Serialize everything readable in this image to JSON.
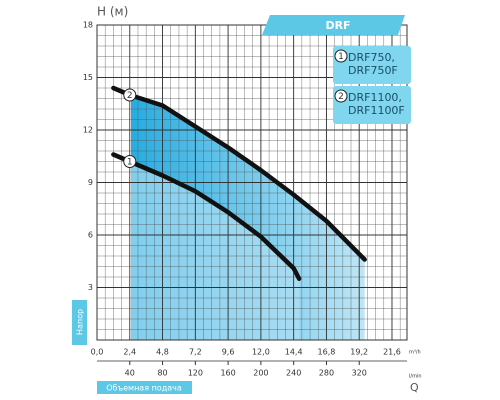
{
  "chart_data": {
    "type": "line",
    "title": "DRF",
    "y_label": "H (м)",
    "y_axis_name": "Напор",
    "x_axis_name": "Объемная подача",
    "x_label": "Q",
    "x_unit": "m³/h",
    "x2_unit": "l/min",
    "xlim": [
      0,
      22.7
    ],
    "xticks": [
      {
        "value": 0,
        "label": "0,0"
      },
      {
        "value": 2.4,
        "label": "2,4"
      },
      {
        "value": 4.8,
        "label": "4,8"
      },
      {
        "value": 7.2,
        "label": "7,2"
      },
      {
        "value": 9.6,
        "label": "9,6"
      },
      {
        "value": 12.0,
        "label": "12,0"
      },
      {
        "value": 14.4,
        "label": "14,4"
      },
      {
        "value": 16.8,
        "label": "16,8"
      },
      {
        "value": 19.2,
        "label": "19,2"
      },
      {
        "value": 21.6,
        "label": "21,6"
      }
    ],
    "x2lim": [
      0,
      378.3
    ],
    "x2ticks": [
      40,
      80,
      120,
      160,
      200,
      240,
      280,
      320
    ],
    "ylim": [
      0,
      18
    ],
    "yticks": [
      3,
      6,
      9,
      12,
      15,
      18
    ],
    "grid": true,
    "series": [
      {
        "name": "DRF750, DRF750F",
        "marker": "1",
        "color": "#111111",
        "x": [
          1.2,
          2.4,
          4.8,
          7.2,
          9.6,
          12.0,
          14.4,
          14.8
        ],
        "values": [
          10.6,
          10.2,
          9.4,
          8.5,
          7.3,
          5.9,
          4.1,
          3.5
        ]
      },
      {
        "name": "DRF1100, DRF1100F",
        "marker": "2",
        "color": "#111111",
        "x": [
          1.2,
          2.4,
          4.8,
          7.2,
          9.6,
          12.0,
          14.4,
          16.8,
          19.6
        ],
        "values": [
          14.4,
          14.0,
          13.4,
          12.2,
          11.0,
          9.7,
          8.3,
          6.8,
          4.6
        ]
      }
    ]
  }
}
